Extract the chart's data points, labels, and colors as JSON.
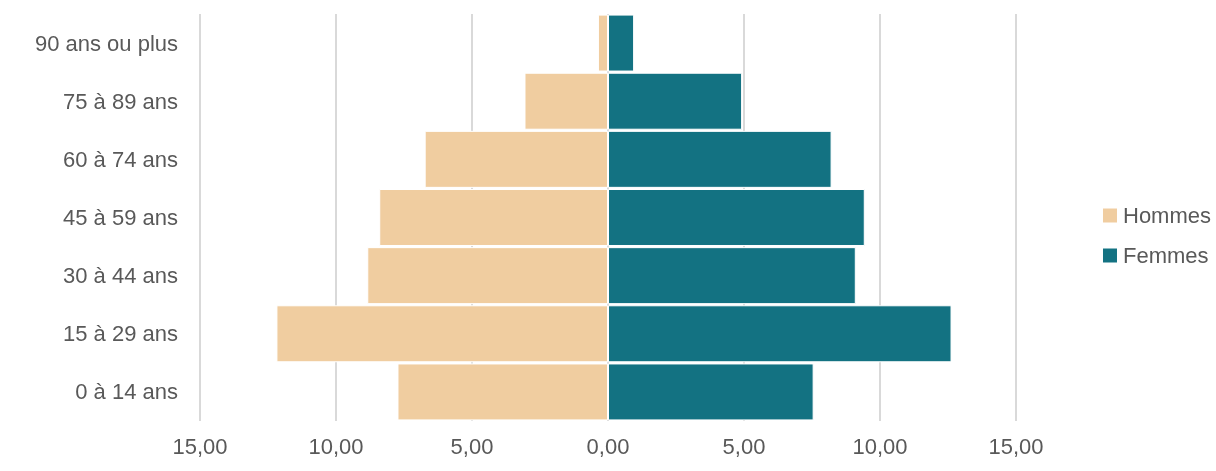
{
  "chart_data": {
    "type": "bar",
    "orientation": "horizontal",
    "categories": [
      "90 ans ou plus",
      "75 à 89 ans",
      "60 à 74 ans",
      "45 à 59 ans",
      "30 à 44 ans",
      "15 à 29 ans",
      "0 à 14 ans"
    ],
    "series": [
      {
        "name": "Hommes",
        "color": "#f0cda0",
        "values": [
          -0.37,
          -3.07,
          -6.74,
          -8.41,
          -8.85,
          -12.19,
          -7.74
        ]
      },
      {
        "name": "Femmes",
        "color": "#137282",
        "values": [
          0.96,
          4.93,
          8.22,
          9.44,
          9.11,
          12.63,
          7.56
        ]
      }
    ],
    "xlim": [
      -15,
      15
    ],
    "xticks": [
      {
        "value": -15,
        "label": "15,00"
      },
      {
        "value": -10,
        "label": "10,00"
      },
      {
        "value": -5,
        "label": "5,00"
      },
      {
        "value": 0,
        "label": "0,00"
      },
      {
        "value": 5,
        "label": "5,00"
      },
      {
        "value": 10,
        "label": "10,00"
      },
      {
        "value": 15,
        "label": "15,00"
      }
    ],
    "grid": "x",
    "legend": "right",
    "stacked": true
  }
}
